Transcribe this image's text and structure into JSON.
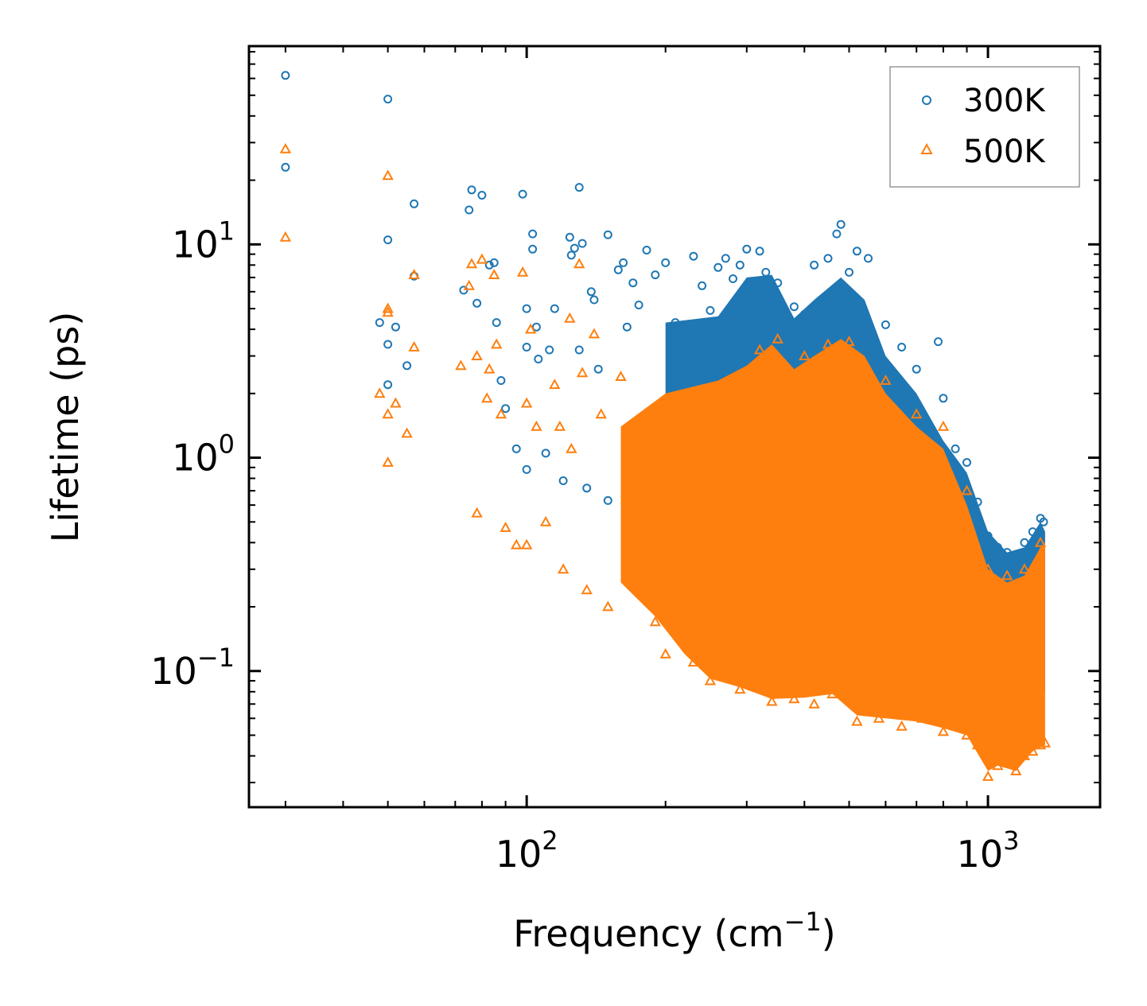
{
  "chart_data": {
    "type": "scatter",
    "title": "",
    "xlabel": "Frequency (cm",
    "xlabel_sup": "−1",
    "xlabel_close": ")",
    "ylabel": "Lifetime (ps)",
    "xscale": "log",
    "yscale": "log",
    "xlim": [
      25,
      1750
    ],
    "ylim": [
      0.023,
      85
    ],
    "x_ticks": [
      {
        "value": 100,
        "base": "10",
        "exp": "2"
      },
      {
        "value": 1000,
        "base": "10",
        "exp": "3"
      }
    ],
    "y_ticks": [
      {
        "value": 10,
        "base": "10",
        "exp": "1"
      },
      {
        "value": 1,
        "base": "10",
        "exp": "0"
      },
      {
        "value": 0.1,
        "base": "10",
        "exp": "−1"
      }
    ],
    "legend_position": "top-right",
    "series": [
      {
        "name": "300K",
        "marker": "circle",
        "color": "#1f77b4",
        "points": [
          [
            30,
            62
          ],
          [
            30,
            23
          ],
          [
            50,
            48
          ],
          [
            50,
            10.5
          ],
          [
            50,
            3.4
          ],
          [
            50,
            2.2
          ],
          [
            48,
            4.3
          ],
          [
            52,
            4.1
          ],
          [
            55,
            2.7
          ],
          [
            57,
            15.5
          ],
          [
            57,
            7.1
          ],
          [
            73,
            6.1
          ],
          [
            76,
            18
          ],
          [
            75,
            14.5
          ],
          [
            78,
            5.3
          ],
          [
            80,
            17
          ],
          [
            83,
            8.0
          ],
          [
            85,
            8.2
          ],
          [
            86,
            4.3
          ],
          [
            88,
            2.3
          ],
          [
            90,
            1.7
          ],
          [
            95,
            1.1
          ],
          [
            98,
            17.2
          ],
          [
            100,
            5.0
          ],
          [
            100,
            3.3
          ],
          [
            100,
            0.88
          ],
          [
            103,
            11.2
          ],
          [
            103,
            9.5
          ],
          [
            105,
            4.1
          ],
          [
            106,
            2.9
          ],
          [
            110,
            1.05
          ],
          [
            112,
            3.2
          ],
          [
            115,
            5.0
          ],
          [
            120,
            0.78
          ],
          [
            124,
            10.8
          ],
          [
            125,
            8.9
          ],
          [
            127,
            9.6
          ],
          [
            130,
            18.5
          ],
          [
            130,
            3.2
          ],
          [
            132,
            10.1
          ],
          [
            135,
            0.72
          ],
          [
            138,
            6.0
          ],
          [
            140,
            5.5
          ],
          [
            143,
            2.6
          ],
          [
            150,
            11.1
          ],
          [
            150,
            0.63
          ],
          [
            158,
            7.6
          ],
          [
            162,
            8.2
          ],
          [
            165,
            4.1
          ],
          [
            170,
            6.6
          ],
          [
            175,
            5.2
          ],
          [
            182,
            9.4
          ],
          [
            190,
            7.2
          ],
          [
            200,
            8.2
          ],
          [
            210,
            4.3
          ],
          [
            220,
            3.1
          ],
          [
            230,
            8.8
          ],
          [
            240,
            6.4
          ],
          [
            250,
            4.9
          ],
          [
            260,
            7.8
          ],
          [
            270,
            8.6
          ],
          [
            280,
            6.9
          ],
          [
            290,
            8.0
          ],
          [
            300,
            9.5
          ],
          [
            310,
            6.5
          ],
          [
            320,
            9.3
          ],
          [
            330,
            7.4
          ],
          [
            350,
            6.6
          ],
          [
            380,
            5.1
          ],
          [
            400,
            4.7
          ],
          [
            420,
            8.0
          ],
          [
            450,
            8.6
          ],
          [
            470,
            11.2
          ],
          [
            480,
            12.4
          ],
          [
            500,
            7.4
          ],
          [
            520,
            9.3
          ],
          [
            550,
            8.6
          ],
          [
            600,
            4.2
          ],
          [
            650,
            3.3
          ],
          [
            700,
            2.6
          ],
          [
            780,
            3.5
          ],
          [
            800,
            1.9
          ],
          [
            850,
            1.1
          ],
          [
            900,
            0.95
          ],
          [
            950,
            0.62
          ],
          [
            1000,
            0.43
          ],
          [
            1050,
            0.38
          ],
          [
            1100,
            0.36
          ],
          [
            1150,
            0.33
          ],
          [
            1200,
            0.4
          ],
          [
            1250,
            0.45
          ],
          [
            1300,
            0.52
          ],
          [
            1320,
            0.5
          ]
        ]
      },
      {
        "name": "500K",
        "marker": "triangle",
        "color": "#ff7f0e",
        "points": [
          [
            30,
            28
          ],
          [
            30,
            10.8
          ],
          [
            50,
            21
          ],
          [
            50,
            5.0
          ],
          [
            50,
            4.8
          ],
          [
            48,
            2.0
          ],
          [
            50,
            1.6
          ],
          [
            50,
            0.95
          ],
          [
            52,
            1.8
          ],
          [
            55,
            1.3
          ],
          [
            57,
            7.2
          ],
          [
            57,
            3.3
          ],
          [
            72,
            2.7
          ],
          [
            75,
            6.4
          ],
          [
            76,
            8.1
          ],
          [
            78,
            3.0
          ],
          [
            78,
            0.55
          ],
          [
            80,
            8.5
          ],
          [
            82,
            1.9
          ],
          [
            83,
            2.6
          ],
          [
            85,
            7.2
          ],
          [
            86,
            3.4
          ],
          [
            88,
            1.6
          ],
          [
            90,
            0.47
          ],
          [
            95,
            0.39
          ],
          [
            98,
            7.4
          ],
          [
            100,
            1.8
          ],
          [
            100,
            0.39
          ],
          [
            102,
            4.0
          ],
          [
            105,
            1.4
          ],
          [
            110,
            0.5
          ],
          [
            115,
            2.2
          ],
          [
            118,
            1.4
          ],
          [
            120,
            0.3
          ],
          [
            124,
            4.5
          ],
          [
            125,
            1.1
          ],
          [
            130,
            8.1
          ],
          [
            132,
            2.5
          ],
          [
            135,
            0.24
          ],
          [
            140,
            3.8
          ],
          [
            145,
            1.6
          ],
          [
            150,
            0.2
          ],
          [
            160,
            2.4
          ],
          [
            165,
            1.0
          ],
          [
            170,
            0.34
          ],
          [
            180,
            0.25
          ],
          [
            190,
            0.17
          ],
          [
            200,
            0.12
          ],
          [
            220,
            0.19
          ],
          [
            230,
            0.11
          ],
          [
            250,
            0.09
          ],
          [
            270,
            0.1
          ],
          [
            290,
            0.082
          ],
          [
            310,
            0.085
          ],
          [
            340,
            0.072
          ],
          [
            380,
            0.074
          ],
          [
            420,
            0.07
          ],
          [
            460,
            0.078
          ],
          [
            520,
            0.058
          ],
          [
            580,
            0.06
          ],
          [
            650,
            0.055
          ],
          [
            720,
            0.06
          ],
          [
            800,
            0.052
          ],
          [
            850,
            0.06
          ],
          [
            900,
            0.05
          ],
          [
            950,
            0.045
          ],
          [
            1000,
            0.032
          ],
          [
            1050,
            0.036
          ],
          [
            1100,
            0.038
          ],
          [
            1150,
            0.034
          ],
          [
            1200,
            0.04
          ],
          [
            1250,
            0.042
          ],
          [
            1300,
            0.045
          ],
          [
            1330,
            0.046
          ],
          [
            320,
            3.2
          ],
          [
            350,
            3.6
          ],
          [
            400,
            3.0
          ],
          [
            450,
            3.4
          ],
          [
            500,
            3.5
          ],
          [
            600,
            2.3
          ],
          [
            700,
            1.6
          ],
          [
            800,
            1.4
          ],
          [
            900,
            0.7
          ],
          [
            1000,
            0.3
          ],
          [
            1100,
            0.28
          ],
          [
            1200,
            0.3
          ],
          [
            1300,
            0.4
          ]
        ]
      }
    ]
  }
}
